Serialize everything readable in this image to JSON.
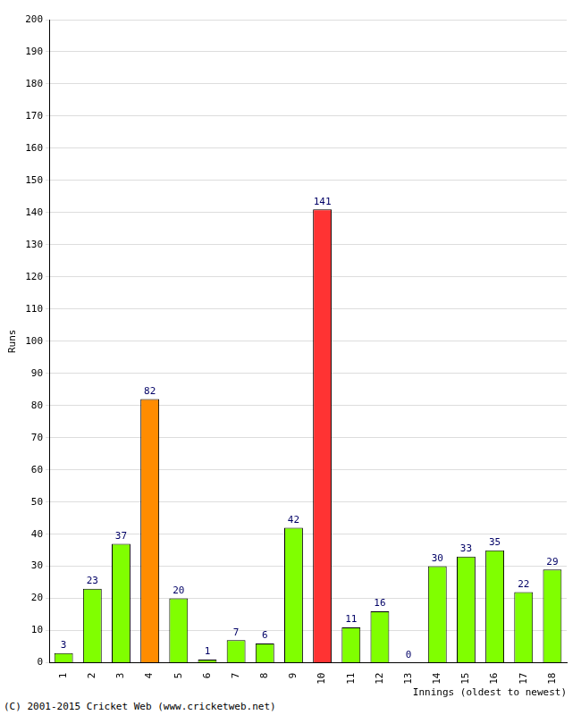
{
  "chart_data": {
    "type": "bar",
    "categories": [
      "1",
      "2",
      "3",
      "4",
      "5",
      "6",
      "7",
      "8",
      "9",
      "10",
      "11",
      "12",
      "13",
      "14",
      "15",
      "16",
      "17",
      "18"
    ],
    "values": [
      3,
      23,
      37,
      82,
      20,
      1,
      7,
      6,
      42,
      141,
      11,
      16,
      0,
      30,
      33,
      35,
      22,
      29
    ],
    "colors": [
      "#80ff00",
      "#80ff00",
      "#80ff00",
      "#ff8c00",
      "#80ff00",
      "#80ff00",
      "#80ff00",
      "#80ff00",
      "#80ff00",
      "#ff3333",
      "#80ff00",
      "#80ff00",
      "#80ff00",
      "#80ff00",
      "#80ff00",
      "#80ff00",
      "#80ff00",
      "#80ff00"
    ],
    "x_label": "Innings (oldest to newest)",
    "y_label": "Runs",
    "ylim": [
      0,
      200
    ],
    "yticks": [
      0,
      10,
      20,
      30,
      40,
      50,
      60,
      70,
      80,
      90,
      100,
      110,
      120,
      130,
      140,
      150,
      160,
      170,
      180,
      190,
      200
    ],
    "grid": true,
    "data_labels": true,
    "annotations": [
      "(C) 2001-2015 Cricket Web (www.cricketweb.net)"
    ]
  }
}
